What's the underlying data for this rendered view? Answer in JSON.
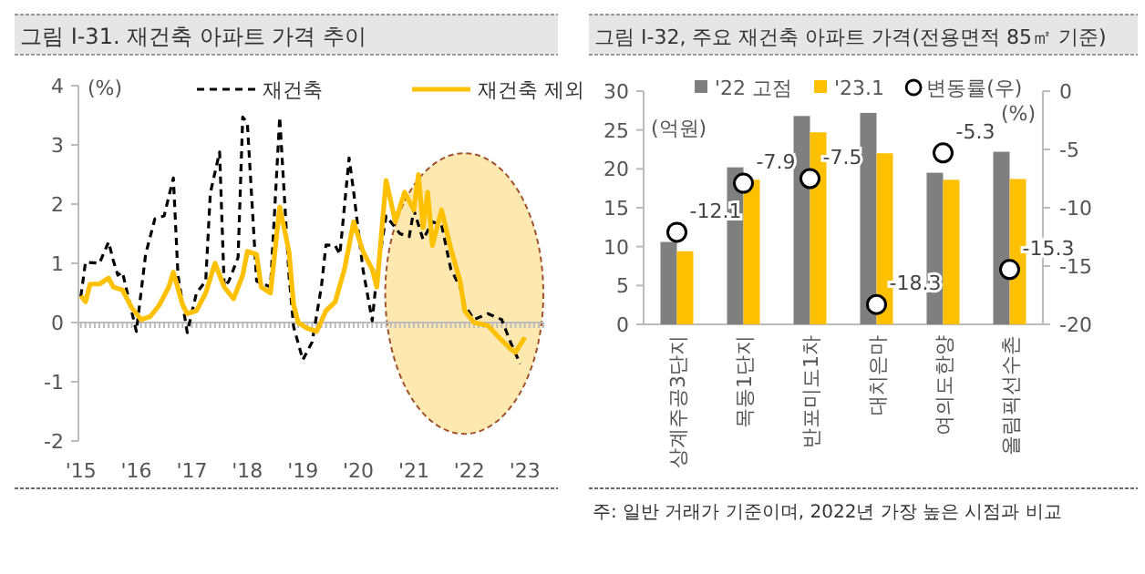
{
  "chart_data": [
    {
      "type": "line",
      "title": "그림 Ⅰ-31. 재건축 아파트 가격 추이",
      "ylabel": "(%)",
      "xlim": [
        "2014-12-15",
        "2023-05-01"
      ],
      "xticks": [
        {
          "value": "2015-01",
          "label": "'15"
        },
        {
          "value": "2016-01",
          "label": "'16"
        },
        {
          "value": "2017-01",
          "label": "'17"
        },
        {
          "value": "2018-01",
          "label": "'18"
        },
        {
          "value": "2019-01",
          "label": "'19"
        },
        {
          "value": "2020-01",
          "label": "'20"
        },
        {
          "value": "2021-01",
          "label": "'21"
        },
        {
          "value": "2022-01",
          "label": "'22"
        },
        {
          "value": "2023-01",
          "label": "'23"
        }
      ],
      "ylim": [
        -2,
        4
      ],
      "yticks": [
        -2,
        -1,
        0,
        1,
        2,
        3,
        4
      ],
      "grid": false,
      "legend": "top",
      "marker": "none",
      "ref_lines": [
        {
          "axis": "y",
          "value": 0,
          "color": "#bbbbbb"
        }
      ],
      "series": [
        {
          "name": "재건축",
          "color": "#000000",
          "line_style": "dashed",
          "x": [
            "2015-01",
            "2015-02",
            "2015-05",
            "2015-07",
            "2015-08",
            "2015-09",
            "2015-10",
            "2016-01",
            "2016-03",
            "2016-05",
            "2016-07",
            "2016-09",
            "2016-10",
            "2016-12",
            "2017-02",
            "2017-04",
            "2017-05",
            "2017-07",
            "2017-08",
            "2017-09",
            "2017-11",
            "2017-12",
            "2018-01",
            "2018-03",
            "2018-06",
            "2018-08",
            "2018-10",
            "2018-11",
            "2019-01",
            "2019-03",
            "2019-05",
            "2019-06",
            "2019-08",
            "2019-09",
            "2019-11",
            "2019-12",
            "2020-02",
            "2020-04",
            "2020-05",
            "2020-07",
            "2020-10",
            "2020-12",
            "2021-01",
            "2021-03",
            "2021-05",
            "2021-07",
            "2021-09",
            "2021-11",
            "2021-12",
            "2022-02",
            "2022-05",
            "2022-08",
            "2022-10",
            "2022-12"
          ],
          "values": [
            0.44,
            1.02,
            1.0,
            1.36,
            1.05,
            0.8,
            0.85,
            -0.15,
            1.15,
            1.75,
            1.8,
            2.44,
            0.8,
            -0.17,
            0.5,
            0.7,
            2.19,
            2.88,
            0.6,
            0.7,
            1.1,
            3.47,
            3.37,
            0.7,
            0.6,
            3.47,
            0.8,
            -0.07,
            -0.63,
            -0.33,
            0.6,
            1.31,
            1.3,
            1.15,
            2.78,
            2.2,
            0.9,
            0.03,
            0.8,
            1.8,
            1.5,
            1.45,
            1.9,
            1.4,
            1.7,
            1.65,
            0.9,
            0.6,
            0.3,
            0.05,
            0.15,
            0.05,
            -0.35,
            -0.7
          ]
        },
        {
          "name": "재건축 제외",
          "color": "#ffc000",
          "line_style": "solid",
          "x": [
            "2015-01",
            "2015-02",
            "2015-03",
            "2015-05",
            "2015-07",
            "2015-08",
            "2015-10",
            "2015-12",
            "2016-02",
            "2016-04",
            "2016-06",
            "2016-08",
            "2016-09",
            "2016-11",
            "2016-12",
            "2017-02",
            "2017-04",
            "2017-06",
            "2017-08",
            "2017-10",
            "2017-12",
            "2018-01",
            "2018-03",
            "2018-04",
            "2018-06",
            "2018-08",
            "2018-10",
            "2018-11",
            "2018-12",
            "2019-02",
            "2019-04",
            "2019-06",
            "2019-08",
            "2019-10",
            "2019-12",
            "2020-02",
            "2020-04",
            "2020-05",
            "2020-07",
            "2020-09",
            "2020-11",
            "2021-01",
            "2021-02",
            "2021-03",
            "2021-04",
            "2021-05",
            "2021-07",
            "2021-09",
            "2021-11",
            "2021-12",
            "2022-02",
            "2022-05",
            "2022-08",
            "2022-10",
            "2022-11",
            "2023-01"
          ],
          "values": [
            0.45,
            0.35,
            0.65,
            0.65,
            0.75,
            0.6,
            0.55,
            0.25,
            0.05,
            0.1,
            0.3,
            0.6,
            0.85,
            0.3,
            0.15,
            0.2,
            0.5,
            1.0,
            0.6,
            0.4,
            0.8,
            1.2,
            1.15,
            0.6,
            0.5,
            1.95,
            1.2,
            0.3,
            0.0,
            -0.1,
            -0.15,
            0.2,
            0.35,
            0.9,
            1.7,
            1.2,
            0.9,
            0.6,
            2.4,
            1.7,
            2.2,
            1.9,
            2.5,
            1.6,
            2.2,
            1.3,
            1.9,
            1.25,
            0.7,
            0.2,
            0.0,
            -0.05,
            -0.3,
            -0.45,
            -0.5,
            -0.25
          ]
        }
      ]
    },
    {
      "type": "bar",
      "title": "그림 Ⅰ-32, 주요 재건축 아파트 가격(전용면적 85㎡ 기준)",
      "ylabel": "(억원)",
      "y2label": "(%)",
      "categories": [
        "상계주공3단지",
        "목동1단지",
        "반포미도1차",
        "대치은마",
        "여의도한양",
        "올림픽선수촌"
      ],
      "ylim": [
        0,
        30
      ],
      "yticks": [
        0,
        5,
        10,
        15,
        20,
        25,
        30
      ],
      "y2lim": [
        -20,
        0
      ],
      "y2ticks": [
        -20,
        -15,
        -10,
        -5,
        0
      ],
      "grid": false,
      "legend": "top",
      "annotations": [
        "주: 일반 거래가 기준이며, 2022년 가장 높은 시점과 비교"
      ],
      "series": [
        {
          "name": "'22 고점",
          "color": "#7f7f7f",
          "values": [
            10.6,
            20.2,
            26.8,
            27.2,
            19.5,
            22.2
          ]
        },
        {
          "name": "'23.1",
          "color": "#ffc000",
          "values": [
            9.4,
            18.6,
            24.7,
            22.0,
            18.6,
            18.7
          ]
        },
        {
          "name": "변동률(우)",
          "type": "scatter",
          "axis": "y2",
          "color": "#ffffff",
          "marker": "circle",
          "data_labels": true,
          "values": [
            -12.1,
            -7.9,
            -7.5,
            -18.3,
            -5.3,
            -15.3
          ]
        }
      ]
    }
  ]
}
